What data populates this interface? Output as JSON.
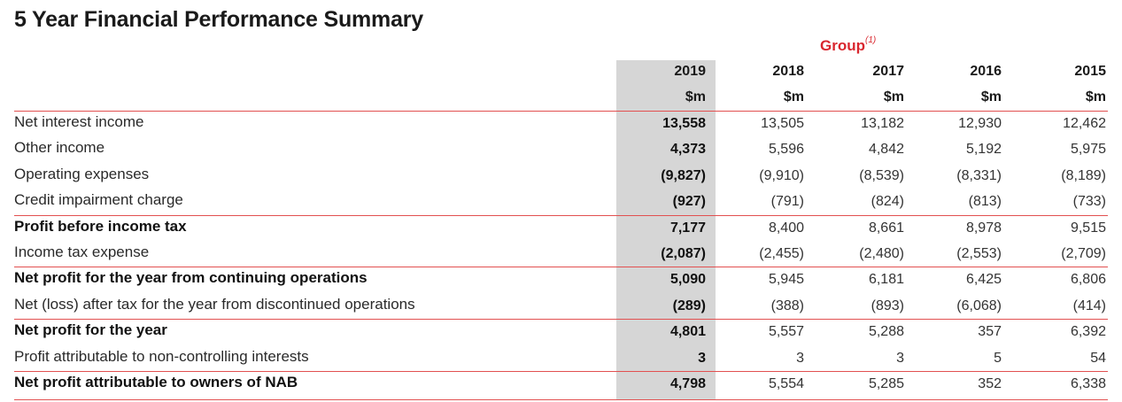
{
  "title": "5 Year Financial Performance Summary",
  "group": {
    "label": "Group",
    "note": "(1)"
  },
  "years": [
    "2019",
    "2018",
    "2017",
    "2016",
    "2015"
  ],
  "unit": "$m",
  "rows": [
    {
      "label": "Net interest income",
      "bold": false,
      "values": [
        "13,558",
        "13,505",
        "13,182",
        "12,930",
        "12,462"
      ]
    },
    {
      "label": "Other income",
      "bold": false,
      "values": [
        "4,373",
        "5,596",
        "4,842",
        "5,192",
        "5,975"
      ]
    },
    {
      "label": "Operating expenses",
      "bold": false,
      "values": [
        "(9,827)",
        "(9,910)",
        "(8,539)",
        "(8,331)",
        "(8,189)"
      ]
    },
    {
      "label": "Credit impairment charge",
      "bold": false,
      "values": [
        "(927)",
        "(791)",
        "(824)",
        "(813)",
        "(733)"
      ]
    },
    {
      "label": "Profit before income tax",
      "bold": true,
      "values": [
        "7,177",
        "8,400",
        "8,661",
        "8,978",
        "9,515"
      ]
    },
    {
      "label": "Income tax expense",
      "bold": false,
      "values": [
        "(2,087)",
        "(2,455)",
        "(2,480)",
        "(2,553)",
        "(2,709)"
      ]
    },
    {
      "label": "Net profit for the year from continuing operations",
      "bold": true,
      "values": [
        "5,090",
        "5,945",
        "6,181",
        "6,425",
        "6,806"
      ]
    },
    {
      "label": "Net (loss) after tax for the year from discontinued operations",
      "bold": false,
      "values": [
        "(289)",
        "(388)",
        "(893)",
        "(6,068)",
        "(414)"
      ]
    },
    {
      "label": "Net profit for the year",
      "bold": true,
      "values": [
        "4,801",
        "5,557",
        "5,288",
        "357",
        "6,392"
      ]
    },
    {
      "label": "Profit attributable to non-controlling interests",
      "bold": false,
      "values": [
        "3",
        "3",
        "3",
        "5",
        "54"
      ]
    },
    {
      "label": "Net profit attributable to owners of NAB",
      "bold": true,
      "values": [
        "4,798",
        "5,554",
        "5,285",
        "352",
        "6,338"
      ]
    }
  ]
}
